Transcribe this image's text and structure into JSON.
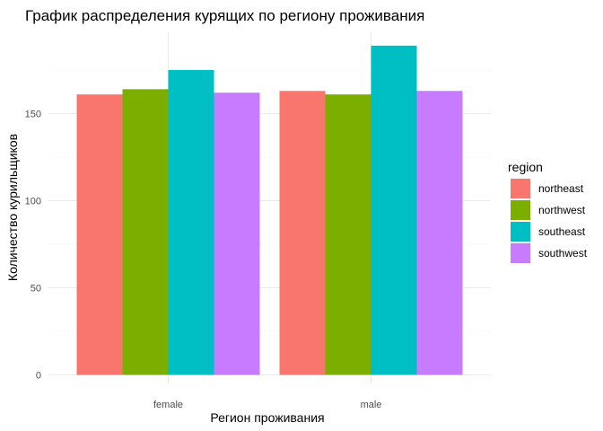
{
  "chart_data": {
    "type": "bar",
    "title": "График распределения курящих по региону проживания",
    "xlabel": "Регион проживания",
    "ylabel": "Количество курильщиков",
    "categories": [
      "female",
      "male"
    ],
    "series": [
      {
        "name": "northeast",
        "color": "#F8766D",
        "values": [
          161,
          163
        ]
      },
      {
        "name": "northwest",
        "color": "#7CAE00",
        "values": [
          164,
          161
        ]
      },
      {
        "name": "southeast",
        "color": "#00BFC4",
        "values": [
          175,
          189
        ]
      },
      {
        "name": "southwest",
        "color": "#C77CFF",
        "values": [
          162,
          163
        ]
      }
    ],
    "ylim": [
      0,
      195
    ],
    "yticks": [
      0,
      50,
      100,
      150
    ],
    "grid": true,
    "legend": {
      "title": "region",
      "position": "right"
    }
  }
}
